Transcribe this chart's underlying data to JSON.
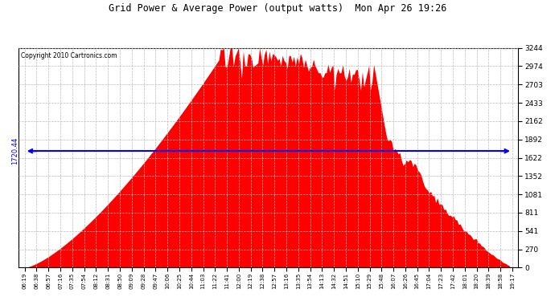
{
  "title": "Grid Power & Average Power (output watts)  Mon Apr 26 19:26",
  "copyright": "Copyright 2010 Cartronics.com",
  "average_power": 1720.44,
  "y_max": 3243.8,
  "y_min": 0.0,
  "y_ticks": [
    0.0,
    270.3,
    540.6,
    811.0,
    1081.3,
    1351.6,
    1621.9,
    1892.2,
    2162.5,
    2432.9,
    2703.2,
    2973.5,
    3243.8
  ],
  "fill_color": "#FF0000",
  "line_color": "#0000FF",
  "background_color": "#FFFFFF",
  "plot_bg_color": "#FFFFFF",
  "grid_color": "#BBBBBB",
  "title_color": "#000000",
  "x_labels": [
    "06:19",
    "06:38",
    "06:57",
    "07:16",
    "07:35",
    "07:54",
    "08:12",
    "08:31",
    "08:50",
    "09:09",
    "09:28",
    "09:47",
    "10:06",
    "10:25",
    "10:44",
    "11:03",
    "11:22",
    "11:41",
    "12:00",
    "12:19",
    "12:38",
    "12:57",
    "13:16",
    "13:35",
    "13:54",
    "14:13",
    "14:32",
    "14:51",
    "15:10",
    "15:29",
    "15:48",
    "16:07",
    "16:26",
    "16:45",
    "17:04",
    "17:23",
    "17:42",
    "18:01",
    "18:20",
    "18:39",
    "18:58",
    "19:17"
  ]
}
